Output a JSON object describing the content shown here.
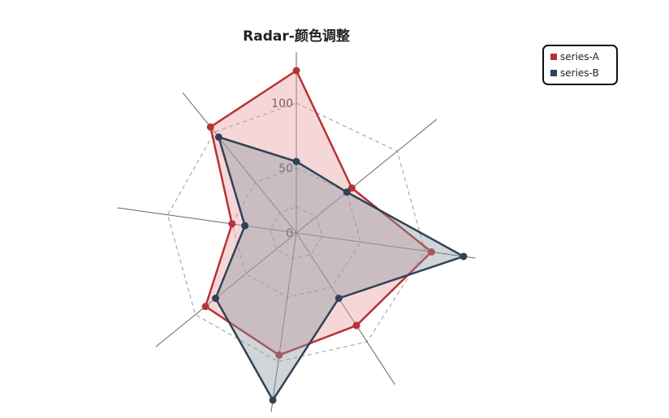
{
  "chart_data": {
    "type": "radar",
    "title": "Radar-颜色调整",
    "axes_count": 8,
    "rlim": [
      0,
      120
    ],
    "ticks": [
      {
        "value": 0,
        "label": "0"
      },
      {
        "value": 50,
        "label": "50"
      },
      {
        "value": 100,
        "label": "100"
      }
    ],
    "grid": "dashed",
    "legend_position": "top-right",
    "series": [
      {
        "name": "series-A",
        "color": "#b83234",
        "fill": "#e89b9b",
        "values": [
          125,
          55,
          105,
          85,
          95,
          90,
          50,
          105
        ]
      },
      {
        "name": "series-B",
        "color": "#2e4357",
        "fill": "#8a96a1",
        "values": [
          55,
          50,
          130,
          60,
          130,
          80,
          40,
          95
        ]
      }
    ]
  }
}
